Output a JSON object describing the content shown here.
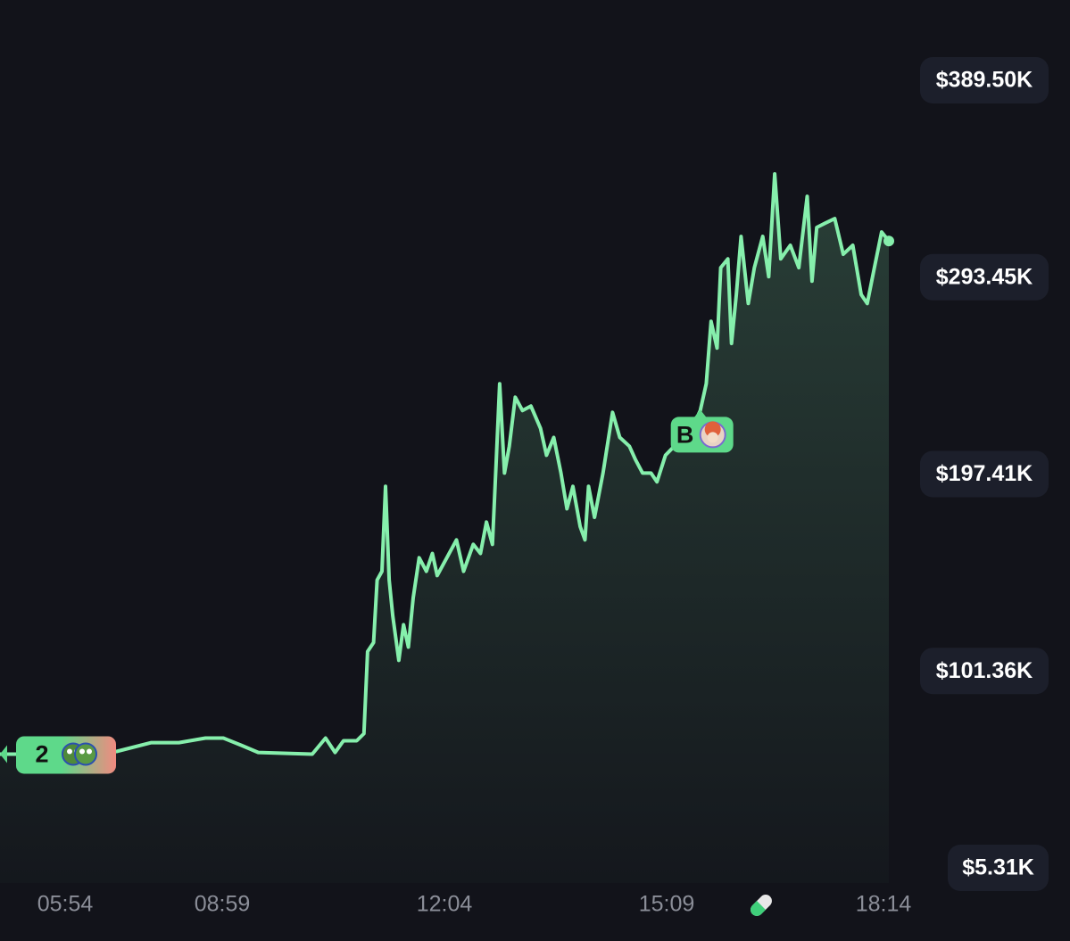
{
  "chart_data": {
    "type": "line",
    "x": [
      354,
      369,
      451,
      480,
      503,
      525,
      540,
      555,
      569,
      614,
      625,
      633,
      640,
      651,
      657,
      660,
      665,
      668,
      672,
      675,
      678,
      681,
      686,
      690,
      694,
      698,
      703,
      709,
      714,
      718,
      726,
      734,
      740,
      748,
      754,
      759,
      764,
      767,
      770,
      774,
      778,
      783,
      789,
      796,
      804,
      809,
      815,
      821,
      826,
      831,
      837,
      841,
      844,
      849,
      856,
      864,
      870,
      878,
      883,
      889,
      896,
      901,
      908,
      919,
      930,
      937,
      942,
      946,
      951,
      954,
      960,
      963,
      967,
      971,
      977,
      982,
      989,
      994,
      999,
      1004,
      1012,
      1019,
      1026,
      1030,
      1034,
      1041,
      1049,
      1056,
      1064,
      1071,
      1076,
      1082,
      1088,
      1094
    ],
    "series": [
      {
        "color": "#86efac",
        "values": [
          60800,
          60800,
          62100,
          66400,
          66400,
          68600,
          68600,
          65100,
          61600,
          60800,
          68600,
          61600,
          67300,
          67300,
          70800,
          110800,
          115200,
          145700,
          150000,
          191400,
          145700,
          128300,
          106500,
          123900,
          113000,
          137000,
          156600,
          150000,
          158700,
          147900,
          156600,
          165300,
          150000,
          163100,
          158700,
          174000,
          163100,
          202300,
          241500,
          197900,
          211000,
          234900,
          228400,
          230600,
          219700,
          206600,
          215300,
          197900,
          180500,
          191400,
          171800,
          165300,
          191400,
          176300,
          197900,
          227500,
          215300,
          211000,
          204500,
          197900,
          197900,
          193600,
          206600,
          213200,
          219700,
          228400,
          241500,
          271900,
          258900,
          298100,
          302400,
          261100,
          285000,
          313300,
          280600,
          298100,
          313300,
          293700,
          343800,
          302400,
          309000,
          298100,
          332900,
          291500,
          317700,
          319800,
          322000,
          304600,
          309000,
          285000,
          280600,
          298100,
          315500,
          311100
        ]
      }
    ],
    "xlim": [
      354,
      1094
    ],
    "xticks": [
      {
        "value": 354,
        "label": "05:54"
      },
      {
        "value": 539,
        "label": "08:59"
      },
      {
        "value": 724,
        "label": "12:04"
      },
      {
        "value": 909,
        "label": "15:09"
      },
      {
        "value": 1094,
        "label": "18:14"
      }
    ],
    "ylim": [
      5310,
      389500
    ],
    "yticks": [
      {
        "value": 389500,
        "label": "$389.50K"
      },
      {
        "value": 293450,
        "label": "$293.45K"
      },
      {
        "value": 197410,
        "label": "$197.41K"
      },
      {
        "value": 101360,
        "label": "$101.36K"
      },
      {
        "value": 5310,
        "label": "$5.31K"
      }
    ],
    "annotations": [
      {
        "text": "2",
        "x": 354,
        "y": 60800
      },
      {
        "text": "B",
        "x": 937,
        "y": 216600
      }
    ]
  }
}
